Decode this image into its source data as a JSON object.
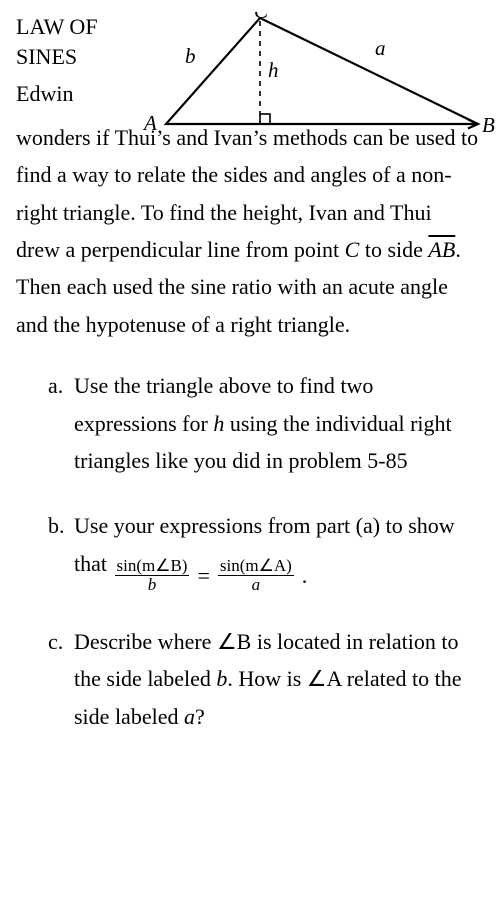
{
  "title": {
    "line1": "LAW OF",
    "line2": "SINES"
  },
  "diagram": {
    "labels": {
      "A": "A",
      "B": "B",
      "C": "C",
      "a": "a",
      "b": "b",
      "h": "h"
    },
    "vertices": {
      "A": [
        40,
        112
      ],
      "B": [
        352,
        112
      ],
      "C": [
        134,
        6
      ]
    },
    "footH": [
      134,
      112
    ],
    "stroke": "#000000",
    "strokeWidth": 2.2,
    "dashPattern": "5,5",
    "labelFont": "italic 21px Georgia, serif",
    "labelFontUpright": "21px Georgia, serif"
  },
  "introName": "Edwin",
  "intro2": "wonders if",
  "body": {
    "p1a": "Thui’s and Ivan’s methods can be used to find a way to relate the sides and angles of a non-right triangle.  To find the height, Ivan and Thui drew a perpendicular line from point ",
    "p1b": " to side ",
    "p1c": ".  Then each used the sine ratio with an acute angle and the hypotenuse of a right triangle.",
    "C": "C",
    "AB": "AB"
  },
  "parts": {
    "a": {
      "marker": "a.",
      "t1": "Use the triangle above to find two expressions for ",
      "hVar": "h",
      "t2": " using the individual right triangles like you did in problem 5-85"
    },
    "b": {
      "marker": "b.",
      "t1": "Use your expressions from part (a) to show that ",
      "eq": {
        "num1": "sin(m∠B)",
        "den1": "b",
        "eqSign": "=",
        "num2": "sin(m∠A)",
        "den2": "a",
        "period": "."
      }
    },
    "c": {
      "marker": "c.",
      "t1": "Describe where ",
      "angB": "∠B",
      "t2": " is located in relation to the side labeled ",
      "bVar": "b",
      "t3": ".  How is ",
      "angA": "∠A",
      "t4": " related to the side labeled ",
      "aVar": "a",
      "t5": "?"
    }
  }
}
